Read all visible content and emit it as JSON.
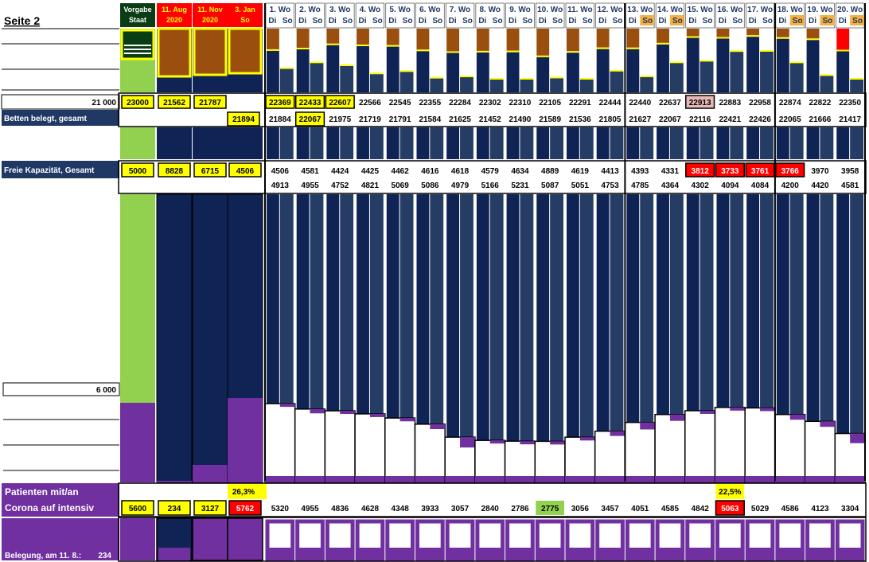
{
  "page_title": "Seite 2",
  "label_beds_axis": "21 000",
  "label_beds_total": "Betten belegt, gesamt",
  "label_free_capacity": "Freie Kapazität, Gesamt",
  "label_icu_axis": "6 000",
  "label_patients_line1": "Patienten mit/an",
  "label_patients_line2": "Corona auf intensiv",
  "label_occupancy": "Belegung, am 11. 8.:",
  "occupancy_value": "234",
  "colors": {
    "navy": "#0f2354",
    "slate": "#253d64",
    "brown": "#9a4f0f",
    "green": "#92d050",
    "purple": "#7030a0",
    "yellow": "#ffff00",
    "red": "#ff0000",
    "orange": "#f5b040",
    "header_blue": "#1f3864",
    "pink": "#e6b8b7",
    "darkgreen": "#0a3d14"
  },
  "chart_data": {
    "type": "bar",
    "reference_columns": [
      {
        "header": [
          "Vorgabe",
          "Staat"
        ],
        "header_style": "green",
        "beds": "23000",
        "free": "5000",
        "patients": "5600"
      },
      {
        "header": [
          "11. Aug",
          "2020"
        ],
        "header_style": "red",
        "beds": "21562",
        "free": "8828",
        "patients": "234"
      },
      {
        "header": [
          "11. Nov",
          "2020"
        ],
        "header_style": "red",
        "beds": "21787",
        "free": "6715",
        "patients": "3127"
      },
      {
        "header": [
          "3. Jan",
          "So"
        ],
        "header_style": "red",
        "beds_second": "21894",
        "free": "4506",
        "patients": "5762",
        "share": "26,3%"
      }
    ],
    "weeks": [
      {
        "label": "1. Wo",
        "di": "Di",
        "so": "So",
        "beds_di": "22369",
        "beds_so": "21884",
        "free_di": "4506",
        "free_so": "4913",
        "patients": "5320"
      },
      {
        "label": "2. Wo",
        "di": "Di",
        "so": "So",
        "beds_di": "22433",
        "beds_so": "22067",
        "free_di": "4581",
        "free_so": "4955",
        "patients": "4955"
      },
      {
        "label": "3. Wo",
        "di": "Di",
        "so": "So",
        "beds_di": "22607",
        "beds_so": "21975",
        "free_di": "4424",
        "free_so": "4752",
        "patients": "4836"
      },
      {
        "label": "4. Wo",
        "di": "Di",
        "so": "So",
        "beds_di": "22566",
        "beds_so": "21719",
        "free_di": "4425",
        "free_so": "4821",
        "patients": "4628"
      },
      {
        "label": "5. Wo",
        "di": "Di",
        "so": "So",
        "beds_di": "22545",
        "beds_so": "21791",
        "free_di": "4462",
        "free_so": "5069",
        "patients": "4348"
      },
      {
        "label": "6. Wo",
        "di": "Di",
        "so": "So",
        "beds_di": "22355",
        "beds_so": "21584",
        "free_di": "4616",
        "free_so": "5086",
        "patients": "3933"
      },
      {
        "label": "7. Wo",
        "di": "Di",
        "so": "So",
        "beds_di": "22284",
        "beds_so": "21625",
        "free_di": "4618",
        "free_so": "4979",
        "patients": "3057"
      },
      {
        "label": "8. Wo",
        "di": "Di",
        "so": "So",
        "beds_di": "22302",
        "beds_so": "21452",
        "free_di": "4579",
        "free_so": "5166",
        "patients": "2840"
      },
      {
        "label": "9. Wo",
        "di": "Di",
        "so": "So",
        "beds_di": "22310",
        "beds_so": "21490",
        "free_di": "4634",
        "free_so": "5231",
        "patients": "2786"
      },
      {
        "label": "10. Wo",
        "di": "Di",
        "so": "So",
        "beds_di": "22105",
        "beds_so": "21589",
        "free_di": "4889",
        "free_so": "5087",
        "patients": "2775"
      },
      {
        "label": "11. Wo",
        "di": "Di",
        "so": "So",
        "beds_di": "22291",
        "beds_so": "21536",
        "free_di": "4619",
        "free_so": "5051",
        "patients": "3056"
      },
      {
        "label": "12. Wo",
        "di": "Di",
        "so": "So",
        "beds_di": "22444",
        "beds_so": "21805",
        "free_di": "4413",
        "free_so": "4753",
        "patients": "3457"
      },
      {
        "label": "13. Wo",
        "di": "Di",
        "so": "So",
        "beds_di": "22440",
        "beds_so": "21627",
        "free_di": "4393",
        "free_so": "4785",
        "patients": "4051"
      },
      {
        "label": "14. Wo",
        "di": "Di",
        "so": "So",
        "beds_di": "22637",
        "beds_so": "22067",
        "free_di": "4331",
        "free_so": "4364",
        "patients": "4585"
      },
      {
        "label": "15. Wo",
        "di": "Di",
        "so": "So",
        "beds_di": "22913",
        "beds_so": "22116",
        "free_di": "3812",
        "free_so": "4302",
        "patients": "4842"
      },
      {
        "label": "16. Wo",
        "di": "Di",
        "so": "So",
        "beds_di": "22883",
        "beds_so": "22421",
        "free_di": "3733",
        "free_so": "4094",
        "patients": "5063",
        "share": "22,5%"
      },
      {
        "label": "17. Wo",
        "di": "Di",
        "so": "So",
        "beds_di": "22958",
        "beds_so": "22426",
        "free_di": "3761",
        "free_so": "4084",
        "patients": "5029"
      },
      {
        "label": "18. Wo",
        "di": "Di",
        "so": "So",
        "beds_di": "22874",
        "beds_so": "22065",
        "free_di": "3766",
        "free_so": "4200",
        "patients": "4586"
      },
      {
        "label": "19. Wo",
        "di": "Di",
        "so": "So",
        "beds_di": "22822",
        "beds_so": "21666",
        "free_di": "3970",
        "free_so": "4420",
        "patients": "4123"
      },
      {
        "label": "20. Wo",
        "di": "Di",
        "so": "So",
        "beds_di": "22350",
        "beds_so": "21417",
        "free_di": "3958",
        "free_so": "4581",
        "patients": "3304"
      }
    ],
    "highlights": {
      "beds_yellow": [
        "0:di",
        "1:di",
        "2:di",
        "1:so"
      ],
      "beds_pink": [
        "14:di"
      ],
      "free_red": [
        "14:di",
        "15:di",
        "16:di",
        "17:di"
      ],
      "patients_green": [
        9
      ],
      "patients_red": [
        15
      ],
      "so_orange_weeks": [
        12,
        13,
        17,
        18,
        19
      ],
      "top_red_weeks": [
        19
      ]
    },
    "group_boundaries_after_week": [
      11,
      16
    ],
    "ylim_icu": [
      0,
      6000
    ]
  }
}
